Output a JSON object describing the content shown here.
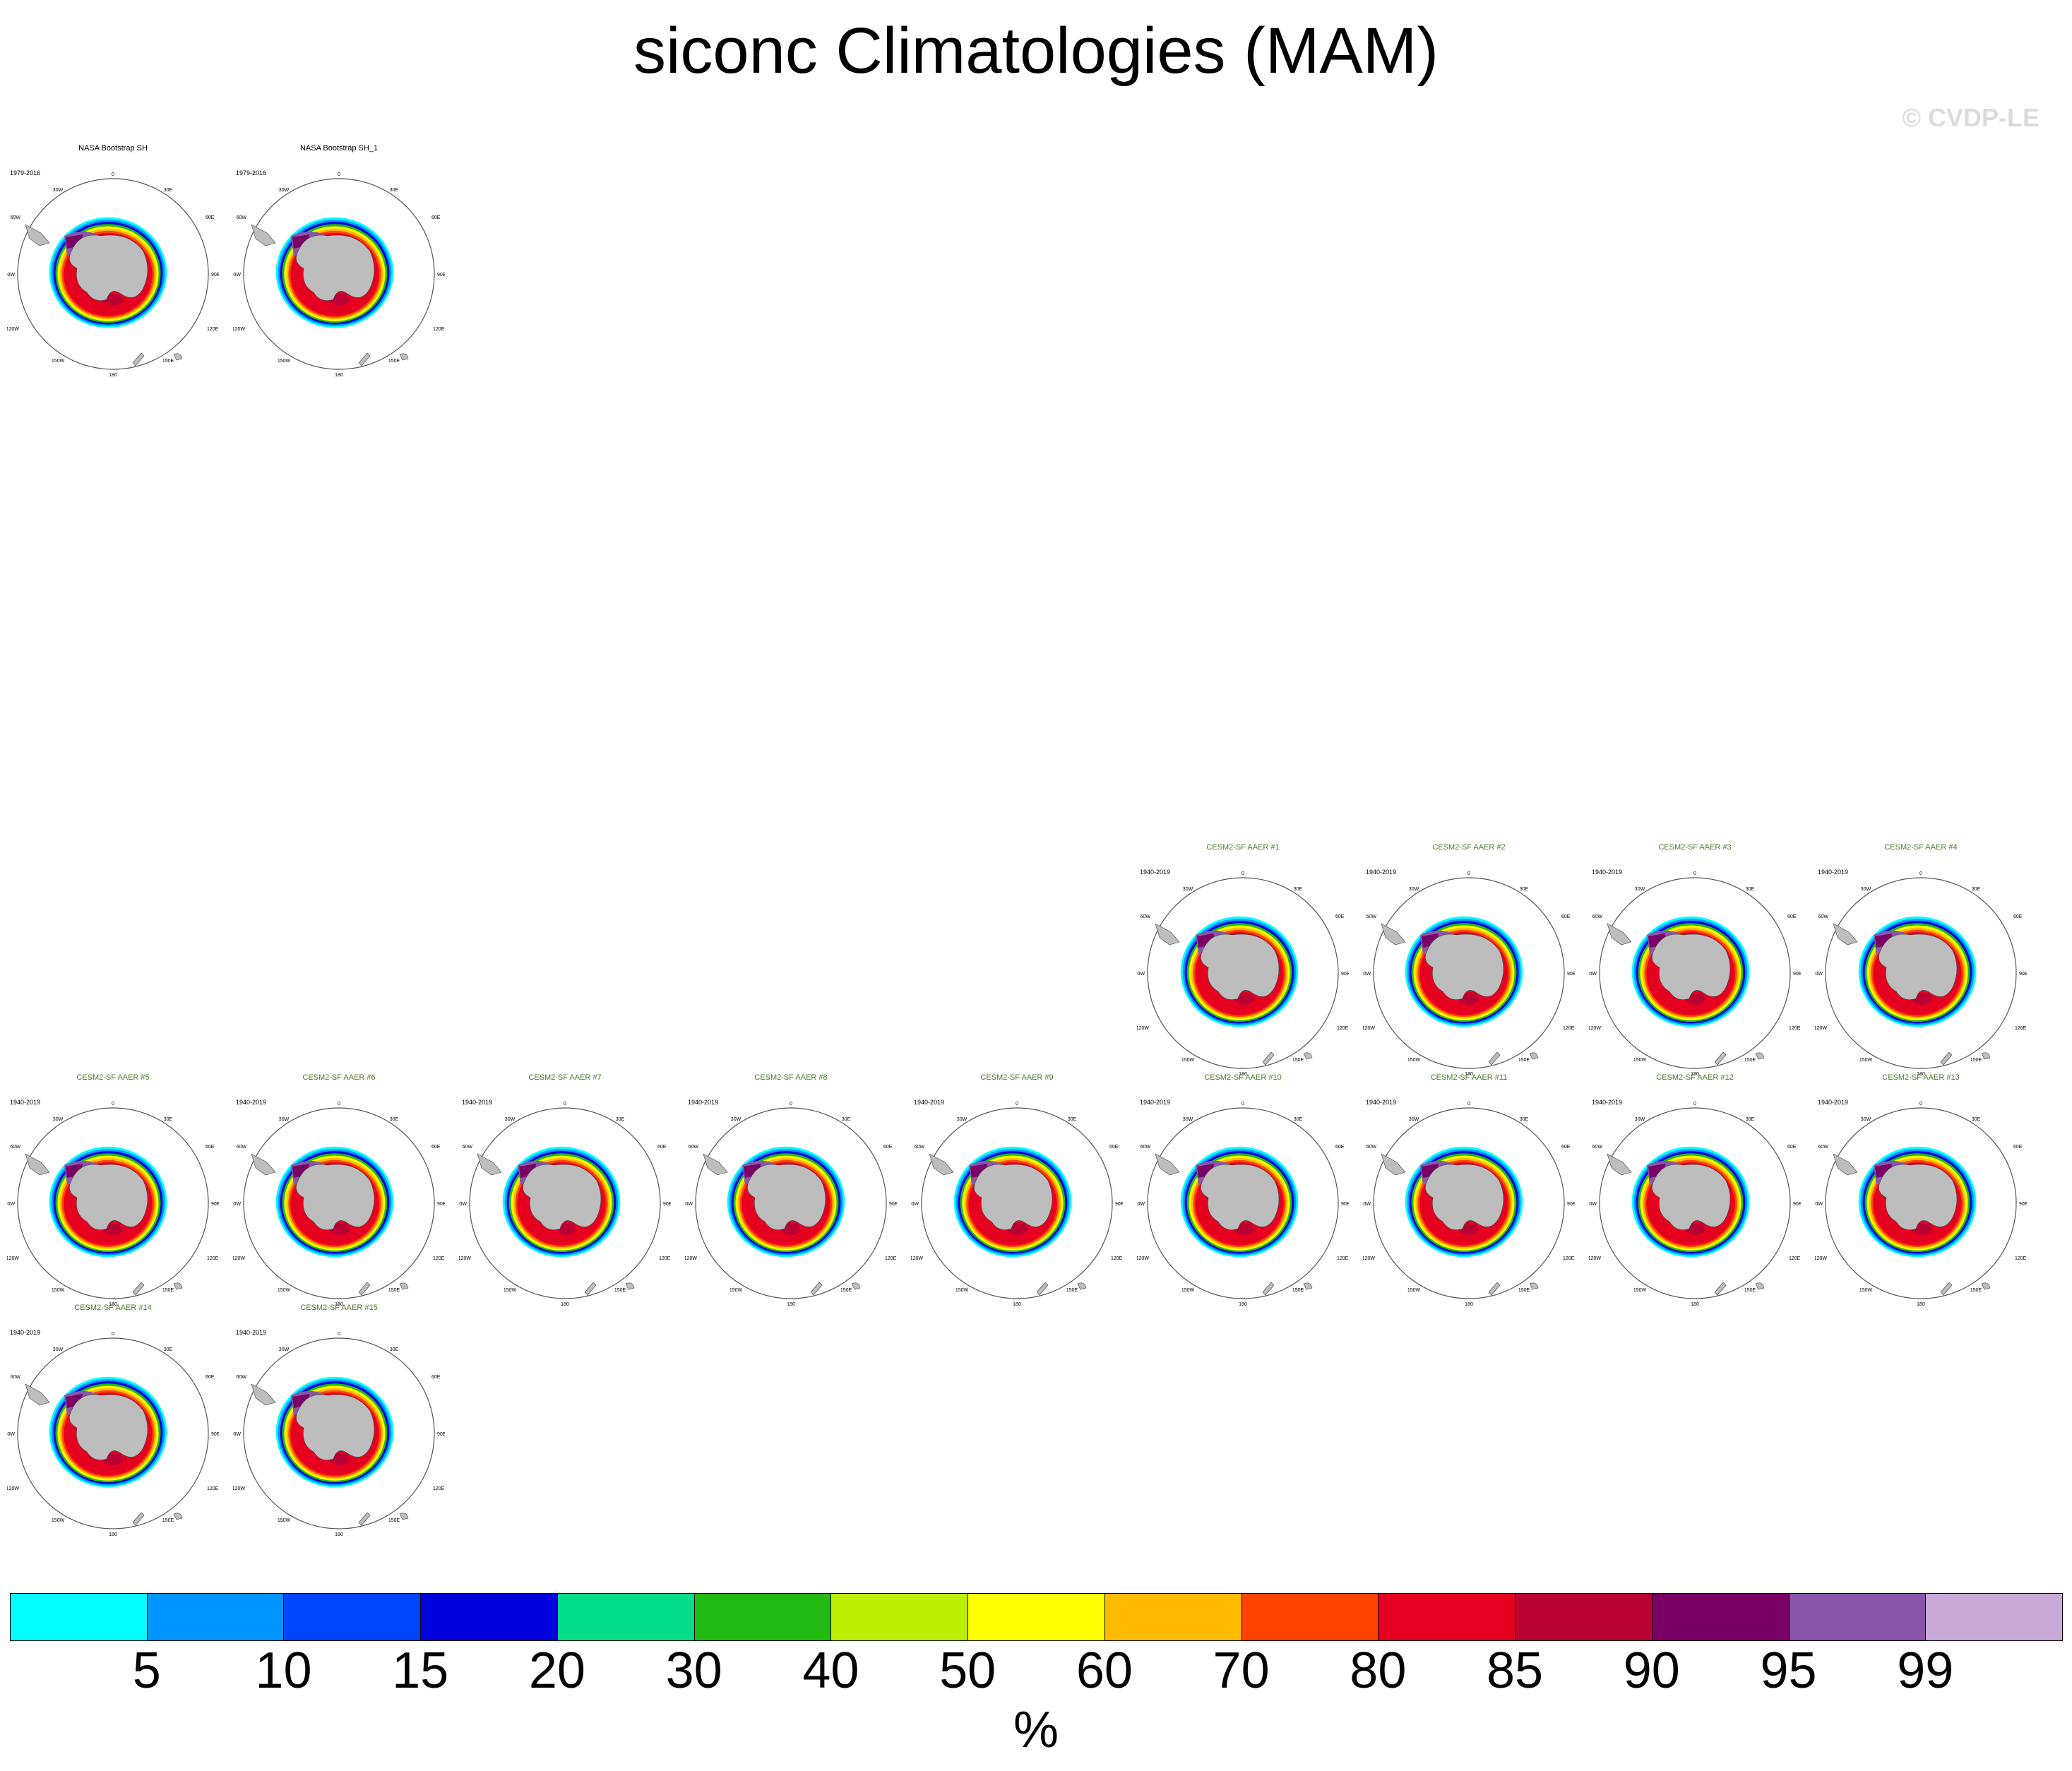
{
  "title": "siconc Climatologies (MAM)",
  "watermark": "© CVDP-LE",
  "obs_color": "#000000",
  "model_color": "#4a7a2a",
  "map_labels": {
    "lon_top": "0",
    "lon_30w": "30W",
    "lon_30e": "30E",
    "lon_60w": "60W",
    "lon_60e": "60E",
    "lon_90w": "90W",
    "lon_90e": "90E",
    "lon_120w": "120W",
    "lon_120e": "120E",
    "lon_150w": "150W",
    "lon_150e": "150E",
    "lon_180": "180"
  },
  "panels": [
    {
      "title": "NASA Bootstrap SH",
      "period": "1979-2016",
      "kind": "obs"
    },
    {
      "title": "NASA Bootstrap SH_1",
      "period": "1979-2016",
      "kind": "obs"
    },
    {
      "title": "CESM2-SF AAER #1",
      "period": "1940-2019",
      "kind": "model"
    },
    {
      "title": "CESM2-SF AAER #2",
      "period": "1940-2019",
      "kind": "model"
    },
    {
      "title": "CESM2-SF AAER #3",
      "period": "1940-2019",
      "kind": "model"
    },
    {
      "title": "CESM2-SF AAER #4",
      "period": "1940-2019",
      "kind": "model"
    },
    {
      "title": "CESM2-SF AAER #5",
      "period": "1940-2019",
      "kind": "model"
    },
    {
      "title": "CESM2-SF AAER #6",
      "period": "1940-2019",
      "kind": "model"
    },
    {
      "title": "CESM2-SF AAER #7",
      "period": "1940-2019",
      "kind": "model"
    },
    {
      "title": "CESM2-SF AAER #8",
      "period": "1940-2019",
      "kind": "model"
    },
    {
      "title": "CESM2-SF AAER #9",
      "period": "1940-2019",
      "kind": "model"
    },
    {
      "title": "CESM2-SF AAER #10",
      "period": "1940-2019",
      "kind": "model"
    },
    {
      "title": "CESM2-SF AAER #11",
      "period": "1940-2019",
      "kind": "model"
    },
    {
      "title": "CESM2-SF AAER #12",
      "period": "1940-2019",
      "kind": "model"
    },
    {
      "title": "CESM2-SF AAER #13",
      "period": "1940-2019",
      "kind": "model"
    },
    {
      "title": "CESM2-SF AAER #14",
      "period": "1940-2019",
      "kind": "model"
    },
    {
      "title": "CESM2-SF AAER #15",
      "period": "1940-2019",
      "kind": "model"
    }
  ],
  "colorbar": {
    "units": "%",
    "labels": [
      "5",
      "10",
      "15",
      "20",
      "30",
      "40",
      "50",
      "60",
      "70",
      "80",
      "85",
      "90",
      "95",
      "99"
    ],
    "colors": [
      "#00ffff",
      "#0095ff",
      "#0044ff",
      "#0000dd",
      "#00dd88",
      "#22bb11",
      "#bbee00",
      "#ffff00",
      "#ffbb00",
      "#ff4400",
      "#e60020",
      "#bb0033",
      "#7a0066",
      "#8a55aa",
      "#c8aad8"
    ]
  }
}
